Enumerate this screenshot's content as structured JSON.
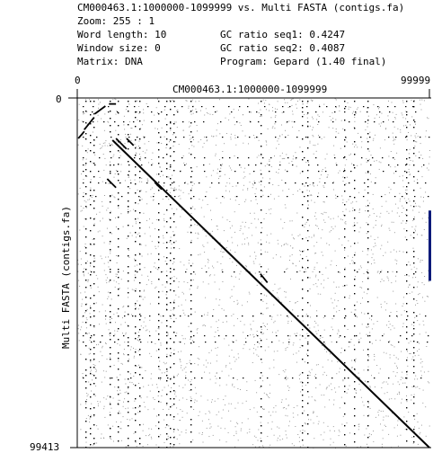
{
  "header": {
    "title": "CM000463.1:1000000-1099999 vs. Multi FASTA (contigs.fa)",
    "zoom": "Zoom: 255 : 1",
    "word_length": "Word length: 10",
    "window_size": "Window size: 0",
    "matrix": "Matrix: DNA",
    "gc_seq1": "GC ratio seq1: 0.4247",
    "gc_seq2": "GC ratio seq2: 0.4087",
    "program": "Program: Gepard (1.40 final)"
  },
  "axes": {
    "x_start": "0",
    "x_end": "99999",
    "x_title": "CM000463.1:1000000-1099999",
    "y_start": "0",
    "y_end": "99413",
    "y_title": "Multi FASTA (contigs.fa)"
  },
  "colors": {
    "dots": "#000000",
    "noise": "#9a9a9a",
    "marker": "#0a1a7a"
  },
  "dotplot": {
    "x_range": [
      0,
      99999
    ],
    "y_range": [
      0,
      99413
    ],
    "main_diagonal": [
      [
        10000,
        12000
      ],
      [
        99999,
        99413
      ]
    ],
    "short_segments": [
      [
        [
          300,
          11500
        ],
        [
          2000,
          9500
        ]
      ],
      [
        [
          2000,
          9000
        ],
        [
          4800,
          5500
        ]
      ],
      [
        [
          5000,
          4500
        ],
        [
          8000,
          2300
        ]
      ],
      [
        [
          9000,
          1700
        ],
        [
          11000,
          1700
        ]
      ],
      [
        [
          11000,
          11500
        ],
        [
          14000,
          14500
        ]
      ],
      [
        [
          14000,
          11500
        ],
        [
          16000,
          13500
        ]
      ],
      [
        [
          8500,
          23000
        ],
        [
          11000,
          25500
        ]
      ],
      [
        [
          22000,
          24000
        ],
        [
          24000,
          26000
        ]
      ],
      [
        [
          52000,
          50000
        ],
        [
          54000,
          52500
        ]
      ]
    ],
    "marker_y_range": [
      32000,
      52000
    ]
  }
}
